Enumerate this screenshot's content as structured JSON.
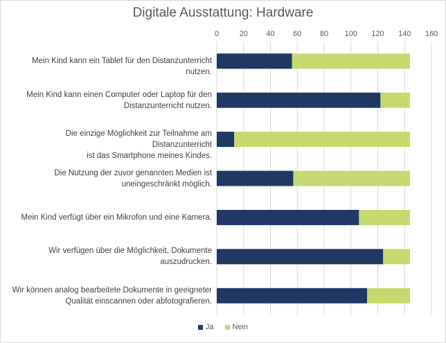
{
  "chart_data": {
    "type": "bar",
    "orientation": "horizontal",
    "stacked": true,
    "title": "Digitale Ausstattung: Hardware",
    "categories": [
      "Mein Kind kann ein Tablet für den Distanzunterricht nutzen.",
      "Mein Kind kann einen Computer oder Laptop für den Distanzunterricht nutzen.",
      "Die einzige Möglichkeit zur Teilnahme am Distanzunterricht ist das Smartphone meines Kindes.",
      "Die Nutzung der zuvor genannten Medien ist uneingeschränkt möglich.",
      "Mein Kind verfügt über ein Mikrofon und eine Kamera.",
      "Wir verfügen über die Möglichkeit, Dokumente auszudrucken.",
      "Wir können analog bearbeitete Dokumente in geeigneter Qualität einscannen oder abfotografieren."
    ],
    "category_lines": [
      [
        "Mein Kind kann ein Tablet für den Distanzunterricht nutzen."
      ],
      [
        "Mein Kind kann einen Computer oder Laptop für den",
        "Distanzunterricht nutzen."
      ],
      [
        "Die einzige Möglichkeit zur Teilnahme am Distanzunterricht",
        "ist das Smartphone meines Kindes."
      ],
      [
        "Die Nutzung der zuvor genannten Medien ist",
        "uneingeschränkt möglich."
      ],
      [
        "Mein Kind verfügt über ein Mikrofon und eine Kamera."
      ],
      [
        "Wir verfügen über die Möglichkeit, Dokumente",
        "auszudrucken."
      ],
      [
        "Wir können analog bearbeitete Dokumente in geeigneter",
        "Qualität einscannen oder abfotografieren."
      ]
    ],
    "series": [
      {
        "name": "Ja",
        "color": "#1f3864",
        "values": [
          56,
          122,
          13,
          57,
          106,
          124,
          112
        ]
      },
      {
        "name": "Nein",
        "color": "#c5d96f",
        "values": [
          88,
          22,
          131,
          87,
          38,
          20,
          32
        ]
      }
    ],
    "xlim": [
      0,
      160
    ],
    "xticks": [
      "0",
      "20",
      "40",
      "60",
      "80",
      "100",
      "120",
      "140",
      "160"
    ],
    "grid": true,
    "legend_position": "bottom"
  }
}
